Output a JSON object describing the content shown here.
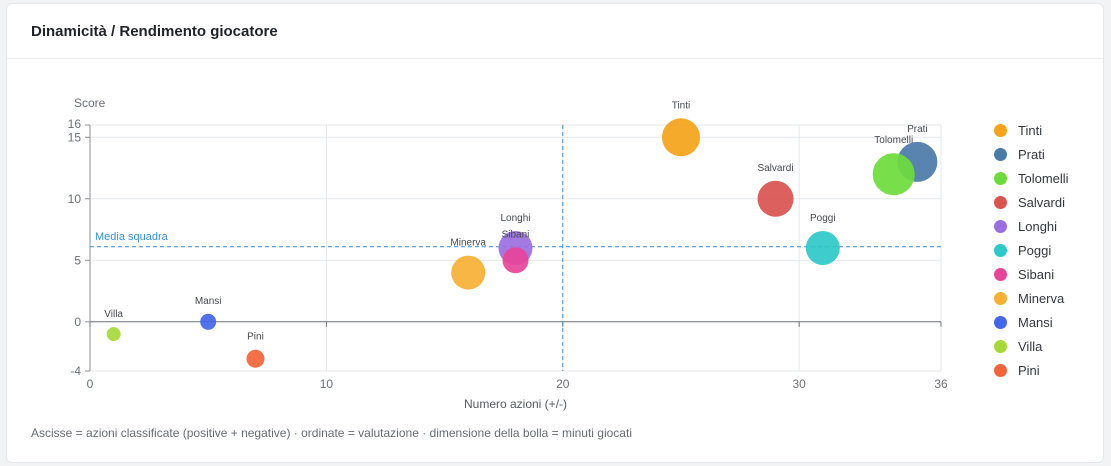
{
  "card": {
    "title": "Dinamicità / Rendimento giocatore",
    "caption": "Ascisse = azioni classificate (positive + negative) · ordinate = valutazione · dimensione della bolla = minuti giocati"
  },
  "chart_data": {
    "type": "scatter",
    "title": "",
    "xlabel": "Numero azioni (+/-)",
    "ylabel": "Score",
    "xlim": [
      0,
      36
    ],
    "ylim": [
      -4,
      16
    ],
    "x_ticks": [
      0,
      10,
      20,
      30,
      36
    ],
    "y_ticks": [
      -4,
      0,
      5,
      10,
      15,
      16
    ],
    "grid": true,
    "legend_position": "right",
    "reference_lines": {
      "team_average_y": 6.1,
      "team_average_label": "Media squadra",
      "mean_x": 20
    },
    "series": [
      {
        "name": "Tinti",
        "x": 25,
        "y": 15,
        "color": "#f5a31a"
      },
      {
        "name": "Prati",
        "x": 35,
        "y": 13,
        "color": "#4a7aa8"
      },
      {
        "name": "Tolomelli",
        "x": 34,
        "y": 12,
        "color": "#6cdc3c"
      },
      {
        "name": "Salvardi",
        "x": 29,
        "y": 10,
        "color": "#d9534f"
      },
      {
        "name": "Longhi",
        "x": 18,
        "y": 6,
        "color": "#9b6ee0"
      },
      {
        "name": "Poggi",
        "x": 31,
        "y": 6,
        "color": "#2ec8c8"
      },
      {
        "name": "Sibani",
        "x": 18,
        "y": 5,
        "color": "#e8449a"
      },
      {
        "name": "Minerva",
        "x": 16,
        "y": 4,
        "color": "#f7b034"
      },
      {
        "name": "Mansi",
        "x": 5,
        "y": 0,
        "color": "#4466e8"
      },
      {
        "name": "Villa",
        "x": 1,
        "y": -1,
        "color": "#a7d83a"
      },
      {
        "name": "Pini",
        "x": 7,
        "y": -3,
        "color": "#f2643a"
      }
    ]
  }
}
